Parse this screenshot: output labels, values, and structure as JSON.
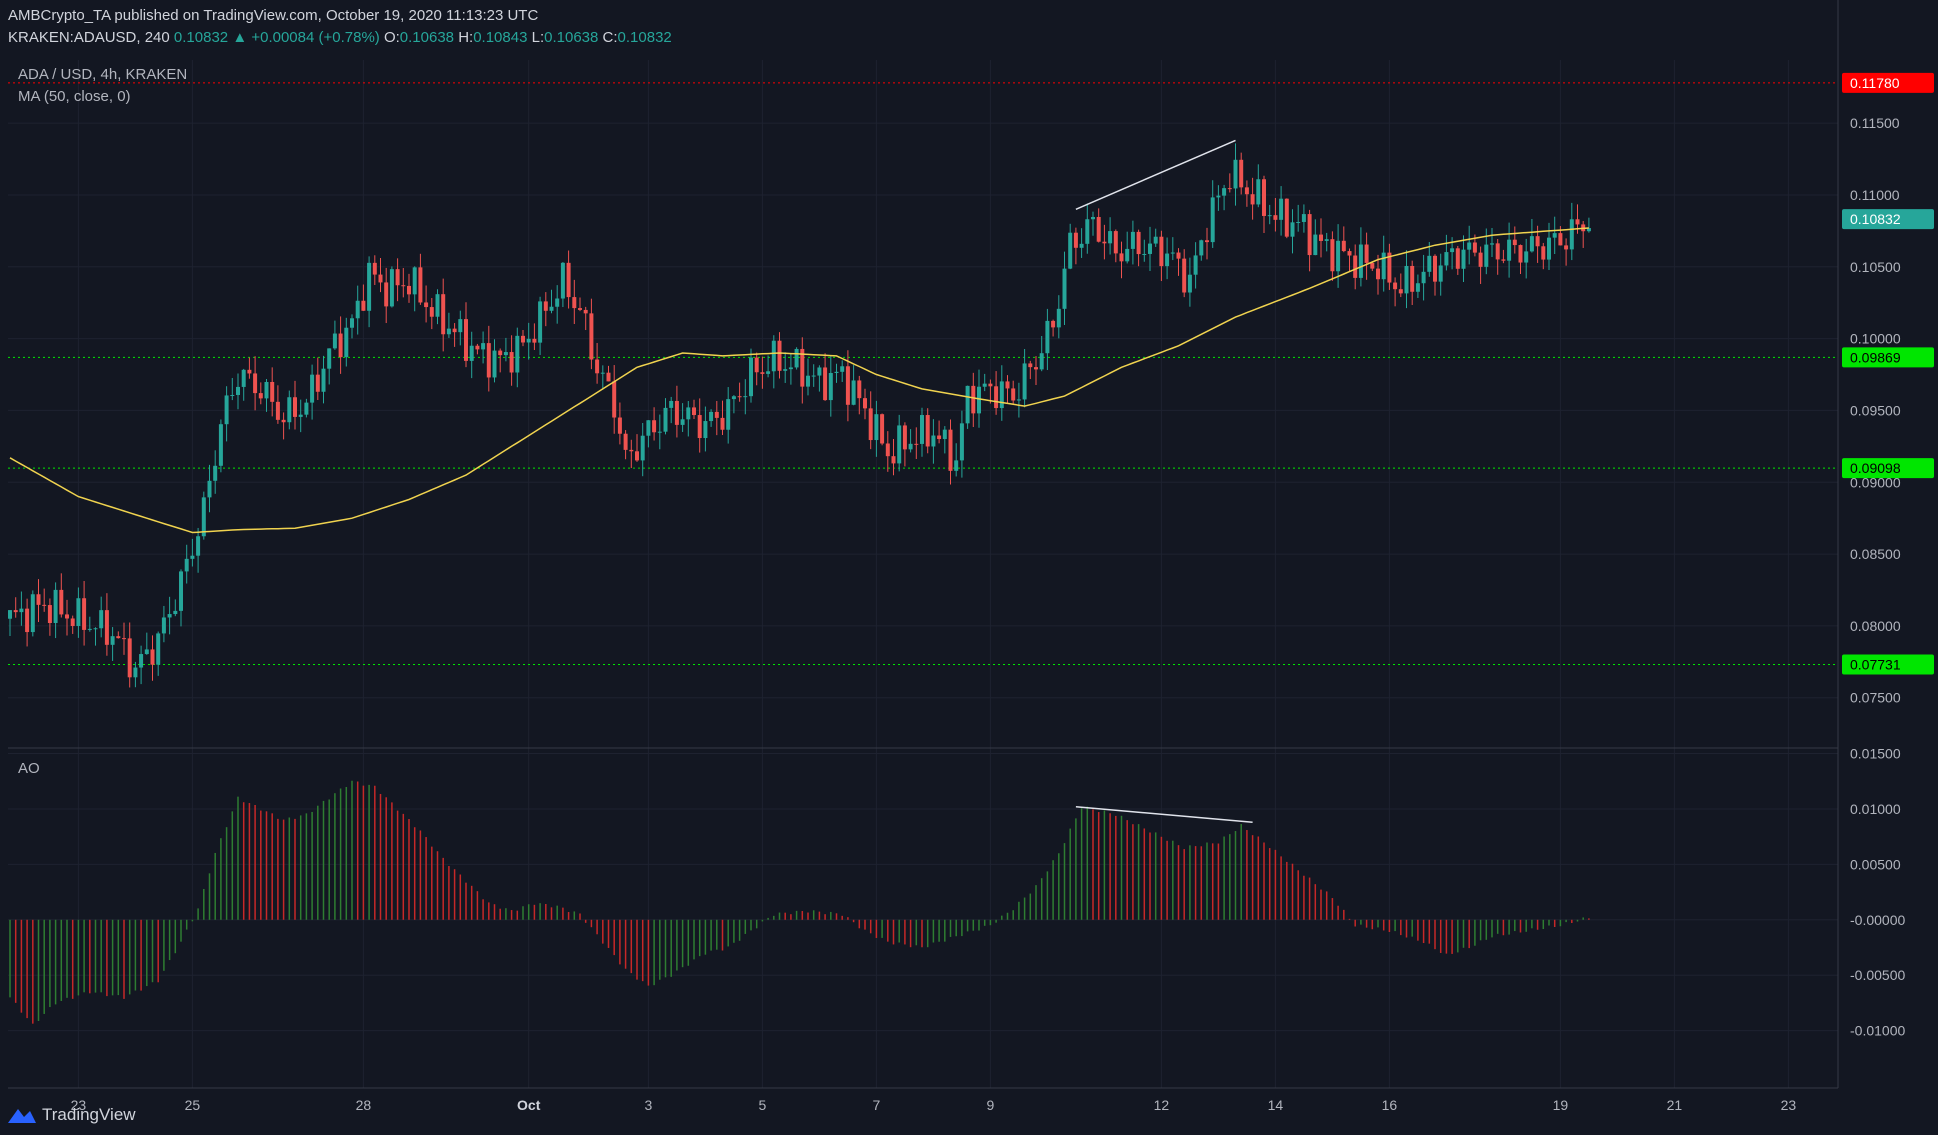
{
  "header": {
    "publisher": "AMBCrypto_TA published on TradingView.com, October 19, 2020 11:13:23 UTC",
    "symbol": "KRAKEN:ADAUSD, 240",
    "last": "0.10832",
    "change": "+0.00084 (+0.78%)",
    "o_label": "O:",
    "o": "0.10638",
    "h_label": "H:",
    "h": "0.10843",
    "l_label": "L:",
    "l": "0.10638",
    "c_label": "C:",
    "c": "0.10832"
  },
  "legend": {
    "title": "ADA / USD, 4h, KRAKEN",
    "ma": "MA (50, close, 0)",
    "ao": "AO"
  },
  "footer": {
    "brand": "TradingView"
  },
  "colors": {
    "background": "#131722",
    "up": "#26a69a",
    "down": "#ef5350",
    "ma": "#f0d34f",
    "support": "#00e600",
    "resistance": "#ff0000",
    "ao_up": "#2e7d32",
    "ao_down": "#c62828"
  },
  "chart_data": [
    {
      "type": "candlestick",
      "title": "ADA / USD, 4h, KRAKEN",
      "y_ticks": [
        "0.11500",
        "0.11000",
        "0.10500",
        "0.10000",
        "0.09500",
        "0.09000",
        "0.08500",
        "0.08000",
        "0.07500"
      ],
      "ylim": [
        0.0715,
        0.1187
      ],
      "x_ticks": [
        "23",
        "25",
        "28",
        "Oct",
        "3",
        "5",
        "7",
        "9",
        "12",
        "14",
        "16",
        "19",
        "21",
        "23"
      ],
      "x_tick_index": [
        12,
        32,
        62,
        91,
        112,
        132,
        152,
        172,
        202,
        222,
        242,
        272,
        292,
        312
      ],
      "horizontal_levels": [
        {
          "value": 0.1178,
          "label": "0.11780",
          "color": "#ff0000"
        },
        {
          "value": 0.09869,
          "label": "0.09869",
          "color": "#00e600"
        },
        {
          "value": 0.09098,
          "label": "0.09098",
          "color": "#00e600"
        },
        {
          "value": 0.07731,
          "label": "0.07731",
          "color": "#00e600"
        }
      ],
      "last_price": {
        "value": 0.10832,
        "label": "0.10832"
      },
      "trendline": {
        "from": [
          187,
          0.109
        ],
        "to": [
          215,
          0.1138
        ]
      },
      "ma_anchors": [
        [
          0,
          0.0917
        ],
        [
          12,
          0.089
        ],
        [
          32,
          0.0865
        ],
        [
          40,
          0.0867
        ],
        [
          50,
          0.0868
        ],
        [
          60,
          0.0875
        ],
        [
          70,
          0.0888
        ],
        [
          80,
          0.0905
        ],
        [
          90,
          0.093
        ],
        [
          100,
          0.0955
        ],
        [
          110,
          0.098
        ],
        [
          118,
          0.099
        ],
        [
          125,
          0.0988
        ],
        [
          135,
          0.099
        ],
        [
          145,
          0.0988
        ],
        [
          152,
          0.0975
        ],
        [
          160,
          0.0965
        ],
        [
          170,
          0.0958
        ],
        [
          178,
          0.0953
        ],
        [
          185,
          0.096
        ],
        [
          195,
          0.098
        ],
        [
          205,
          0.0995
        ],
        [
          215,
          0.1015
        ],
        [
          228,
          0.1035
        ],
        [
          240,
          0.1055
        ],
        [
          250,
          0.1065
        ],
        [
          260,
          0.1072
        ],
        [
          270,
          0.1075
        ],
        [
          277,
          0.1077
        ]
      ],
      "price_anchors": [
        [
          0,
          0.0805
        ],
        [
          6,
          0.0815
        ],
        [
          12,
          0.0805
        ],
        [
          18,
          0.0795
        ],
        [
          22,
          0.077
        ],
        [
          26,
          0.079
        ],
        [
          30,
          0.083
        ],
        [
          34,
          0.088
        ],
        [
          37,
          0.094
        ],
        [
          40,
          0.0975
        ],
        [
          44,
          0.0965
        ],
        [
          48,
          0.0945
        ],
        [
          52,
          0.0955
        ],
        [
          56,
          0.099
        ],
        [
          60,
          0.101
        ],
        [
          63,
          0.1045
        ],
        [
          66,
          0.1035
        ],
        [
          70,
          0.104
        ],
        [
          74,
          0.102
        ],
        [
          78,
          0.1005
        ],
        [
          82,
          0.099
        ],
        [
          86,
          0.0985
        ],
        [
          90,
          0.0995
        ],
        [
          94,
          0.102
        ],
        [
          97,
          0.104
        ],
        [
          100,
          0.102
        ],
        [
          103,
          0.098
        ],
        [
          106,
          0.0955
        ],
        [
          108,
          0.0915
        ],
        [
          112,
          0.0935
        ],
        [
          116,
          0.095
        ],
        [
          122,
          0.094
        ],
        [
          126,
          0.095
        ],
        [
          130,
          0.0975
        ],
        [
          134,
          0.0985
        ],
        [
          138,
          0.098
        ],
        [
          142,
          0.097
        ],
        [
          146,
          0.0975
        ],
        [
          150,
          0.095
        ],
        [
          154,
          0.092
        ],
        [
          158,
          0.093
        ],
        [
          162,
          0.0935
        ],
        [
          166,
          0.0915
        ],
        [
          168,
          0.096
        ],
        [
          172,
          0.0965
        ],
        [
          176,
          0.096
        ],
        [
          180,
          0.0985
        ],
        [
          183,
          0.101
        ],
        [
          186,
          0.1065
        ],
        [
          190,
          0.108
        ],
        [
          194,
          0.106
        ],
        [
          198,
          0.1065
        ],
        [
          203,
          0.106
        ],
        [
          207,
          0.104
        ],
        [
          210,
          0.108
        ],
        [
          214,
          0.1115
        ],
        [
          218,
          0.11
        ],
        [
          222,
          0.1085
        ],
        [
          226,
          0.108
        ],
        [
          230,
          0.1065
        ],
        [
          236,
          0.1055
        ],
        [
          240,
          0.105
        ],
        [
          244,
          0.1035
        ],
        [
          248,
          0.1045
        ],
        [
          254,
          0.106
        ],
        [
          260,
          0.106
        ],
        [
          266,
          0.1062
        ],
        [
          272,
          0.1068
        ],
        [
          277,
          0.1083
        ]
      ]
    },
    {
      "type": "bar",
      "title": "AO",
      "y_ticks": [
        "0.01500",
        "0.01000",
        "0.00500",
        "-0.00000",
        "-0.00500",
        "-0.01000"
      ],
      "ylim": [
        -0.0122,
        0.0155
      ],
      "trendline": {
        "from": [
          187,
          0.0102
        ],
        "to": [
          218,
          0.0088
        ]
      },
      "ao_anchors": [
        [
          0,
          -0.007
        ],
        [
          4,
          -0.0095
        ],
        [
          8,
          -0.0075
        ],
        [
          14,
          -0.0065
        ],
        [
          20,
          -0.007
        ],
        [
          26,
          -0.0055
        ],
        [
          30,
          -0.002
        ],
        [
          33,
          0.001
        ],
        [
          36,
          0.006
        ],
        [
          40,
          0.011
        ],
        [
          44,
          0.01
        ],
        [
          48,
          0.009
        ],
        [
          52,
          0.0095
        ],
        [
          56,
          0.011
        ],
        [
          60,
          0.0125
        ],
        [
          64,
          0.012
        ],
        [
          68,
          0.01
        ],
        [
          72,
          0.008
        ],
        [
          76,
          0.0055
        ],
        [
          80,
          0.0035
        ],
        [
          84,
          0.0015
        ],
        [
          88,
          0.0008
        ],
        [
          92,
          0.0015
        ],
        [
          96,
          0.0012
        ],
        [
          100,
          0.0005
        ],
        [
          104,
          -0.002
        ],
        [
          108,
          -0.0045
        ],
        [
          112,
          -0.006
        ],
        [
          116,
          -0.005
        ],
        [
          122,
          -0.003
        ],
        [
          126,
          -0.0025
        ],
        [
          130,
          -0.001
        ],
        [
          134,
          0.0005
        ],
        [
          140,
          0.0008
        ],
        [
          146,
          0.0005
        ],
        [
          150,
          -0.001
        ],
        [
          154,
          -0.002
        ],
        [
          160,
          -0.0025
        ],
        [
          166,
          -0.0015
        ],
        [
          172,
          -0.0005
        ],
        [
          176,
          0.001
        ],
        [
          180,
          0.003
        ],
        [
          184,
          0.006
        ],
        [
          188,
          0.0102
        ],
        [
          194,
          0.0095
        ],
        [
          200,
          0.008
        ],
        [
          206,
          0.0065
        ],
        [
          212,
          0.007
        ],
        [
          216,
          0.0085
        ],
        [
          220,
          0.007
        ],
        [
          226,
          0.0045
        ],
        [
          232,
          0.002
        ],
        [
          236,
          -0.0005
        ],
        [
          242,
          -0.001
        ],
        [
          248,
          -0.002
        ],
        [
          252,
          -0.0032
        ],
        [
          256,
          -0.0025
        ],
        [
          260,
          -0.0015
        ],
        [
          266,
          -0.001
        ],
        [
          272,
          -0.0005
        ],
        [
          277,
          0.0002
        ]
      ]
    }
  ]
}
